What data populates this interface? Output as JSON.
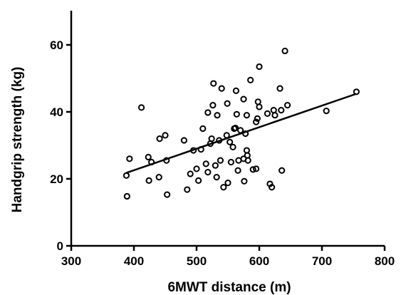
{
  "chart_data": {
    "type": "scatter",
    "xlabel": "6MWT distance (m)",
    "ylabel": "Handgrip strength (kg)",
    "xlim": [
      300,
      800
    ],
    "ylim": [
      0,
      70
    ],
    "xticks": [
      300,
      400,
      500,
      600,
      700,
      800
    ],
    "yticks": [
      0,
      20,
      40,
      60
    ],
    "grid": false,
    "colors": {
      "marker": "#000000",
      "line": "#000000",
      "background": "#ffffff"
    },
    "series": [
      {
        "points": [
          [
            388,
            21.0
          ],
          [
            389,
            14.8
          ],
          [
            393,
            26.0
          ],
          [
            412,
            41.3
          ],
          [
            423,
            26.5
          ],
          [
            424,
            19.5
          ],
          [
            428,
            25.0
          ],
          [
            440,
            20.5
          ],
          [
            441,
            32.0
          ],
          [
            450,
            33.0
          ],
          [
            452,
            25.5
          ],
          [
            453,
            15.3
          ],
          [
            480,
            31.5
          ],
          [
            485,
            16.8
          ],
          [
            490,
            21.5
          ],
          [
            495,
            28.5
          ],
          [
            500,
            23.0
          ],
          [
            503,
            19.5
          ],
          [
            507,
            28.8
          ],
          [
            510,
            35.0
          ],
          [
            515,
            24.5
          ],
          [
            518,
            22.0
          ],
          [
            518,
            39.8
          ],
          [
            522,
            30.5
          ],
          [
            524,
            32.0
          ],
          [
            526,
            42.0
          ],
          [
            527,
            48.5
          ],
          [
            530,
            24.0
          ],
          [
            532,
            20.5
          ],
          [
            533,
            39.0
          ],
          [
            536,
            31.5
          ],
          [
            538,
            25.5
          ],
          [
            540,
            47.0
          ],
          [
            543,
            17.5
          ],
          [
            548,
            33.0
          ],
          [
            549,
            42.5
          ],
          [
            550,
            18.8
          ],
          [
            553,
            31.0
          ],
          [
            555,
            25.0
          ],
          [
            558,
            29.5
          ],
          [
            560,
            35.0
          ],
          [
            562,
            35.2
          ],
          [
            563,
            46.3
          ],
          [
            564,
            39.3
          ],
          [
            566,
            22.5
          ],
          [
            567,
            25.5
          ],
          [
            570,
            34.5
          ],
          [
            575,
            43.8
          ],
          [
            575,
            26.0
          ],
          [
            576,
            19.3
          ],
          [
            578,
            33.5
          ],
          [
            580,
            39.0
          ],
          [
            580,
            28.5
          ],
          [
            581,
            27.0
          ],
          [
            582,
            25.5
          ],
          [
            586,
            49.5
          ],
          [
            590,
            22.8
          ],
          [
            595,
            23.0
          ],
          [
            595,
            37.0
          ],
          [
            597,
            38.0
          ],
          [
            598,
            43.0
          ],
          [
            600,
            41.5
          ],
          [
            600,
            53.5
          ],
          [
            613,
            39.5
          ],
          [
            617,
            18.5
          ],
          [
            620,
            17.5
          ],
          [
            623,
            40.5
          ],
          [
            625,
            39.0
          ],
          [
            633,
            47.0
          ],
          [
            635,
            40.5
          ],
          [
            636,
            22.5
          ],
          [
            641,
            58.2
          ],
          [
            645,
            42.0
          ],
          [
            707,
            40.3
          ],
          [
            755,
            46.0
          ]
        ]
      }
    ],
    "regression": {
      "x": [
        388,
        755
      ],
      "y": [
        21.8,
        45.4
      ]
    }
  }
}
